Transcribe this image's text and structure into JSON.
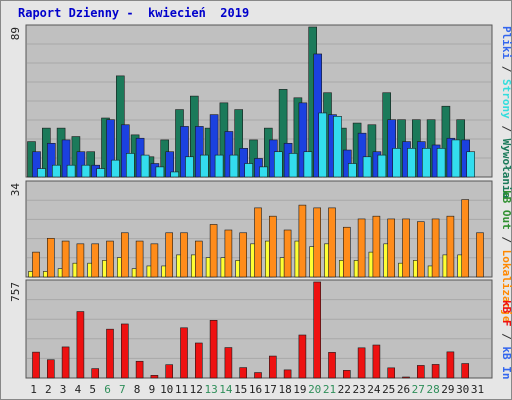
{
  "title": "Raport Dzienny -  kwiecień  2019",
  "chart_data": [
    {
      "type": "bar",
      "name": "top",
      "ymax_label": "89",
      "ylim": [
        0,
        89
      ],
      "categories": [
        "1",
        "2",
        "3",
        "4",
        "5",
        "6",
        "7",
        "8",
        "9",
        "10",
        "11",
        "12",
        "13",
        "14",
        "15",
        "16",
        "17",
        "18",
        "19",
        "20",
        "21",
        "22",
        "23",
        "24",
        "25",
        "26",
        "27",
        "28",
        "29",
        "30",
        "31"
      ],
      "series": [
        {
          "name": "Wywołania",
          "color": "#1b7a5a",
          "values": [
            21,
            29,
            29,
            24,
            15,
            35,
            60,
            25,
            12,
            22,
            40,
            48,
            29,
            44,
            40,
            22,
            29,
            52,
            47,
            89,
            50,
            29,
            32,
            31,
            50,
            34,
            34,
            34,
            42,
            34,
            0
          ]
        },
        {
          "name": "Strony",
          "color": "#1b41e0",
          "values": [
            15,
            20,
            22,
            15,
            7,
            34,
            31,
            23,
            8,
            15,
            30,
            30,
            37,
            27,
            17,
            11,
            22,
            20,
            44,
            73,
            37,
            16,
            26,
            15,
            34,
            21,
            21,
            19,
            23,
            22,
            0
          ]
        },
        {
          "name": "Pliki",
          "color": "#33ddee",
          "values": [
            5,
            7,
            7,
            7,
            5,
            10,
            14,
            13,
            6,
            3,
            12,
            13,
            13,
            13,
            8,
            6,
            15,
            14,
            15,
            38,
            36,
            8,
            12,
            13,
            17,
            17,
            17,
            17,
            22,
            15,
            0
          ]
        }
      ]
    },
    {
      "type": "bar",
      "name": "middle",
      "ymax_label": "34",
      "ylim": [
        0,
        34
      ],
      "categories": [
        "1",
        "2",
        "3",
        "4",
        "5",
        "6",
        "7",
        "8",
        "9",
        "10",
        "11",
        "12",
        "13",
        "14",
        "15",
        "16",
        "17",
        "18",
        "19",
        "20",
        "21",
        "22",
        "23",
        "24",
        "25",
        "26",
        "27",
        "28",
        "29",
        "30",
        "31"
      ],
      "series": [
        {
          "name": "Lokalizacje",
          "color": "#ffff33",
          "values": [
            2,
            2,
            3,
            5,
            5,
            6,
            7,
            3,
            4,
            4,
            8,
            8,
            7,
            7,
            6,
            12,
            13,
            7,
            13,
            11,
            12,
            6,
            6,
            9,
            12,
            5,
            6,
            4,
            8,
            8,
            0
          ]
        },
        {
          "name": "kB Out",
          "color": "#ff8c1a",
          "values": [
            9,
            14,
            13,
            12,
            12,
            13,
            16,
            13,
            12,
            16,
            16,
            13,
            19,
            17,
            16,
            25,
            22,
            17,
            26,
            25,
            25,
            18,
            21,
            22,
            21,
            21,
            20,
            21,
            22,
            28,
            16
          ]
        }
      ]
    },
    {
      "type": "bar",
      "name": "bottom",
      "ymax_label": "757",
      "ylim": [
        0,
        757
      ],
      "categories": [
        "1",
        "2",
        "3",
        "4",
        "5",
        "6",
        "7",
        "8",
        "9",
        "10",
        "11",
        "12",
        "13",
        "14",
        "15",
        "16",
        "17",
        "18",
        "19",
        "20",
        "21",
        "22",
        "23",
        "24",
        "25",
        "26",
        "27",
        "28",
        "29",
        "30",
        "31"
      ],
      "series": [
        {
          "name": "kB In",
          "color": "#33aa33",
          "values": [
            0,
            0,
            0,
            0,
            0,
            0,
            0,
            0,
            0,
            0,
            0,
            0,
            0,
            0,
            0,
            0,
            0,
            0,
            0,
            0,
            0,
            0,
            0,
            0,
            0,
            0,
            0,
            0,
            0,
            0,
            0
          ]
        },
        {
          "name": "kB F",
          "color": "#ee1111",
          "values": [
            204,
            144,
            245,
            524,
            74,
            385,
            426,
            132,
            21,
            105,
            396,
            276,
            455,
            240,
            82,
            43,
            173,
            64,
            339,
            757,
            202,
            60,
            238,
            260,
            80,
            7,
            99,
            107,
            206,
            114,
            0
          ]
        }
      ]
    }
  ],
  "legend": {
    "top_items": [
      {
        "label": "Wywołania",
        "color": "#1b7a5a"
      },
      {
        "label": "Strony",
        "color": "#33dddd"
      },
      {
        "label": "Pliki",
        "color": "#3366ee"
      }
    ],
    "middle_items": [
      {
        "label": "Lokalizacje",
        "color": "#ff8800"
      },
      {
        "label": "kB Out",
        "color": "#2f8f2f"
      }
    ],
    "bottom_items": [
      {
        "label": "kB In",
        "color": "#3366ee"
      },
      {
        "label": "kB F",
        "color": "#ee1111"
      }
    ],
    "separator": " / "
  },
  "weekend_days": [
    6,
    7,
    13,
    14,
    20,
    21,
    27,
    28
  ]
}
